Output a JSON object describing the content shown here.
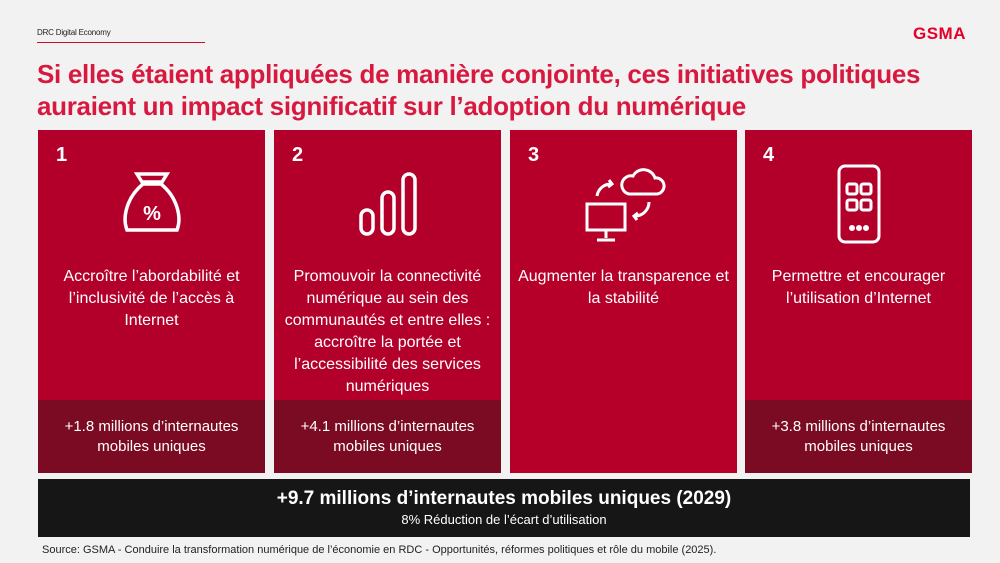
{
  "header": {
    "label": "DRC Digital Economy",
    "logo": "GSMA"
  },
  "title": "Si elles étaient appliquées de manière conjointe, ces initiatives politiques auraient un impact significatif sur l’adoption du numérique",
  "cards": [
    {
      "number": "1",
      "icon": "money-bag-percent-icon",
      "text": "Accroître l’abordabilité et l’inclusivité de l’accès à Internet",
      "result": "+1.8 millions d’internautes mobiles uniques"
    },
    {
      "number": "2",
      "icon": "signal-bars-icon",
      "text": "Promouvoir la connectivité numérique au sein des communautés et entre elles : accroître la portée et l’accessibilité des services numériques",
      "result": "+4.1 millions d’internautes mobiles uniques"
    },
    {
      "number": "3",
      "icon": "cloud-monitor-sync-icon",
      "text": "Augmenter la transparence et la stabilité",
      "result": ""
    },
    {
      "number": "4",
      "icon": "smartphone-apps-icon",
      "text": "Permettre et encourager l’utilisation d’Internet",
      "result": "+3.8 millions d’internautes mobiles uniques"
    }
  ],
  "total": {
    "headline": "+9.7 millions d’internautes mobiles uniques (2029)",
    "sub": "8% Réduction de l’écart d’utilisation"
  },
  "source": "Source: GSMA - Conduire la transformation numérique de l’économie en RDC - Opportunités, réformes politiques et rôle du mobile (2025)."
}
